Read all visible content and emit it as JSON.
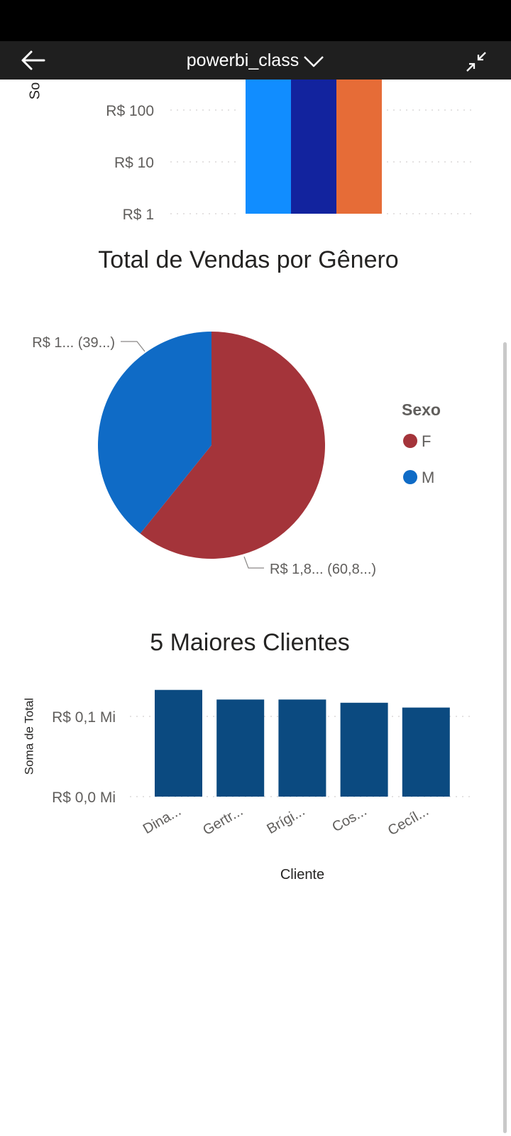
{
  "header": {
    "title": "powerbi_class",
    "back_icon": "arrow-left-icon",
    "dropdown_icon": "chevron-down-icon",
    "collapse_icon": "collapse-arrows-icon"
  },
  "chart_top": {
    "ylabel": "So",
    "y_ticks": [
      "R$ 100",
      "R$ 10",
      "R$ 1"
    ],
    "bar_colors": [
      "#118dff",
      "#12239e",
      "#e66c37"
    ]
  },
  "chart_data": [
    {
      "type": "bar",
      "title": "",
      "scale": "log",
      "y_ticks": [
        "R$ 1",
        "R$ 10",
        "R$ 100"
      ],
      "series": [
        {
          "color": "#118dff"
        },
        {
          "color": "#12239e"
        },
        {
          "color": "#e66c37"
        }
      ]
    },
    {
      "type": "pie",
      "title": "Total de Vendas por Gênero",
      "legend_title": "Sexo",
      "legend_position": "right",
      "slices": [
        {
          "label": "F",
          "percent": 60.8,
          "color": "#a4343a",
          "data_label": "R$ 1,8... (60,8...)"
        },
        {
          "label": "M",
          "percent": 39.2,
          "color": "#0f6bc6",
          "data_label": "R$ 1... (39...)"
        }
      ]
    },
    {
      "type": "bar",
      "title": "5 Maiores Clientes",
      "xlabel": "Cliente",
      "ylabel": "Soma de Total",
      "y_ticks": [
        "R$ 0,0 Mi",
        "R$ 0,1 Mi"
      ],
      "y_tick_values": [
        0,
        0.1
      ],
      "categories": [
        "Dina...",
        "Gertr...",
        "Brígi...",
        "Cos...",
        "Cecíl..."
      ],
      "values": [
        0.133,
        0.121,
        0.121,
        0.117,
        0.111
      ],
      "color": "#0b4a80"
    }
  ]
}
